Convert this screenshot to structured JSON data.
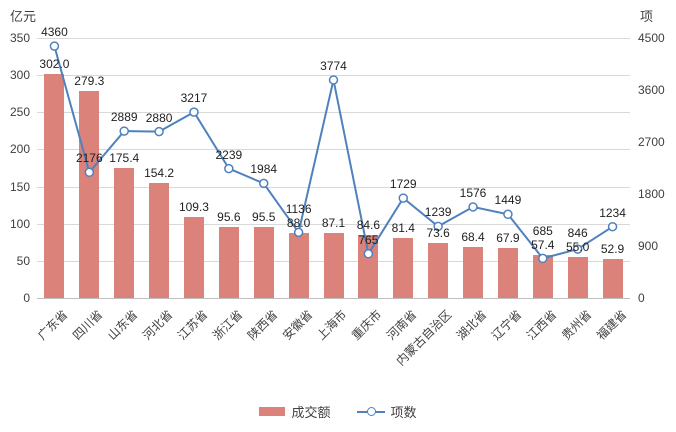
{
  "chart_data": {
    "type": "combo",
    "title": "",
    "categories": [
      "广东省",
      "四川省",
      "山东省",
      "河北省",
      "江苏省",
      "浙江省",
      "陕西省",
      "安徽省",
      "上海市",
      "重庆市",
      "河南省",
      "内蒙古自治区",
      "湖北省",
      "辽宁省",
      "江西省",
      "贵州省",
      "福建省"
    ],
    "series": [
      {
        "name": "成交额",
        "type": "bar",
        "axis": "left",
        "color": "#DB827A",
        "values": [
          302.0,
          279.3,
          175.4,
          154.2,
          109.3,
          95.6,
          95.5,
          88.0,
          87.1,
          84.6,
          81.4,
          73.6,
          68.4,
          67.9,
          57.4,
          55.0,
          52.9
        ],
        "labels": [
          "302.0",
          "279.3",
          "175.4",
          "154.2",
          "109.3",
          "95.6",
          "95.5",
          "88.0",
          "87.1",
          "84.6",
          "81.4",
          "73.6",
          "68.4",
          "67.9",
          "57.4",
          "55.0",
          "52.9"
        ]
      },
      {
        "name": "项数",
        "type": "line",
        "axis": "right",
        "color": "#4F81BD",
        "marker": "circle-open",
        "values": [
          4360,
          2176,
          2889,
          2880,
          3217,
          2239,
          1984,
          1136,
          3774,
          765,
          1729,
          1239,
          1576,
          1449,
          685,
          846,
          1234
        ],
        "labels": [
          "4360",
          "2176",
          "2889",
          "2880",
          "3217",
          "2239",
          "1984",
          "1136",
          "3774",
          "765",
          "1729",
          "1239",
          "1576",
          "1449",
          "685",
          "846",
          "1234"
        ]
      }
    ],
    "left_axis": {
      "unit": "亿元",
      "min": 0,
      "max": 350,
      "step": 50,
      "ticks": [
        "0",
        "50",
        "100",
        "150",
        "200",
        "250",
        "300",
        "350"
      ]
    },
    "right_axis": {
      "unit": "项",
      "min": 0,
      "max": 4500,
      "step": 900,
      "ticks": [
        "0",
        "900",
        "1800",
        "2700",
        "3600",
        "4500"
      ]
    },
    "legend": {
      "position": "bottom",
      "entries": [
        "成交额",
        "项数"
      ]
    },
    "grid": true,
    "colors": {
      "gridline": "#D9D9D9",
      "axis_line": "#BFBFBF",
      "tick_text": "#404040",
      "label_text": "#1F1F1F"
    }
  }
}
